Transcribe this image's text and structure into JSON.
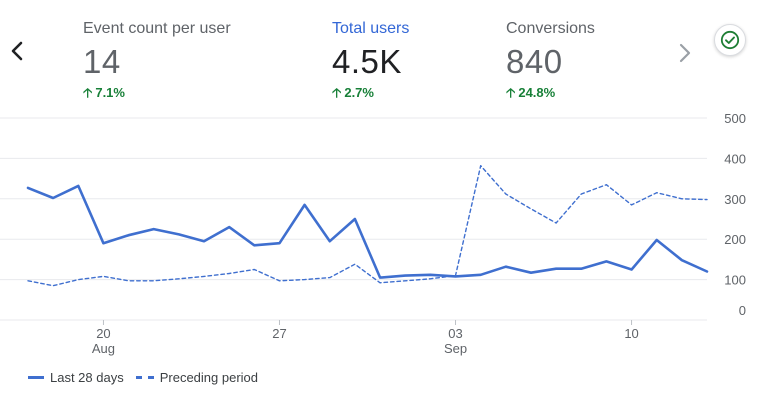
{
  "metrics": [
    {
      "label": "Event count per user",
      "value": "14",
      "change": "7.1%"
    },
    {
      "label": "Total users",
      "value": "4.5K",
      "change": "2.7%"
    },
    {
      "label": "Conversions",
      "value": "840",
      "change": "24.8%"
    }
  ],
  "colors": {
    "series": "#3f6fcf",
    "active_metric": "#3367d6",
    "positive": "#188038",
    "grid": "#e8eaed",
    "axis": "#5f6368"
  },
  "icons": {
    "back": "chevron-left-icon",
    "next": "chevron-right-icon",
    "status": "check-circle-icon"
  },
  "chart_data": {
    "type": "line",
    "x": [
      "Aug 17",
      "Aug 18",
      "Aug 19",
      "Aug 20",
      "Aug 21",
      "Aug 22",
      "Aug 23",
      "Aug 24",
      "Aug 25",
      "Aug 26",
      "Aug 27",
      "Aug 28",
      "Aug 29",
      "Aug 30",
      "Aug 31",
      "Sep 1",
      "Sep 2",
      "Sep 3",
      "Sep 4",
      "Sep 5",
      "Sep 6",
      "Sep 7",
      "Sep 8",
      "Sep 9",
      "Sep 10",
      "Sep 11",
      "Sep 12",
      "Sep 13"
    ],
    "x_ticks": [
      {
        "day": "20",
        "month": "Aug",
        "index": 3
      },
      {
        "day": "27",
        "month": "",
        "index": 10
      },
      {
        "day": "03",
        "month": "Sep",
        "index": 17
      },
      {
        "day": "10",
        "month": "",
        "index": 24
      }
    ],
    "y_ticks": [
      "0",
      "100",
      "200",
      "300",
      "400",
      "500"
    ],
    "ylim": [
      0,
      500
    ],
    "grid": true,
    "legend_position": "bottom-left",
    "series": [
      {
        "name": "Last 28 days",
        "style": "solid",
        "values": [
          327,
          302,
          332,
          190,
          210,
          225,
          212,
          195,
          230,
          185,
          190,
          285,
          195,
          250,
          105,
          110,
          112,
          108,
          112,
          132,
          117,
          127,
          127,
          145,
          125,
          198,
          148,
          120
        ]
      },
      {
        "name": "Preceding period",
        "style": "dashed",
        "values": [
          97,
          85,
          100,
          108,
          97,
          97,
          102,
          108,
          115,
          125,
          97,
          100,
          105,
          138,
          92,
          97,
          102,
          110,
          382,
          312,
          275,
          240,
          312,
          335,
          285,
          315,
          300,
          298
        ]
      }
    ]
  }
}
